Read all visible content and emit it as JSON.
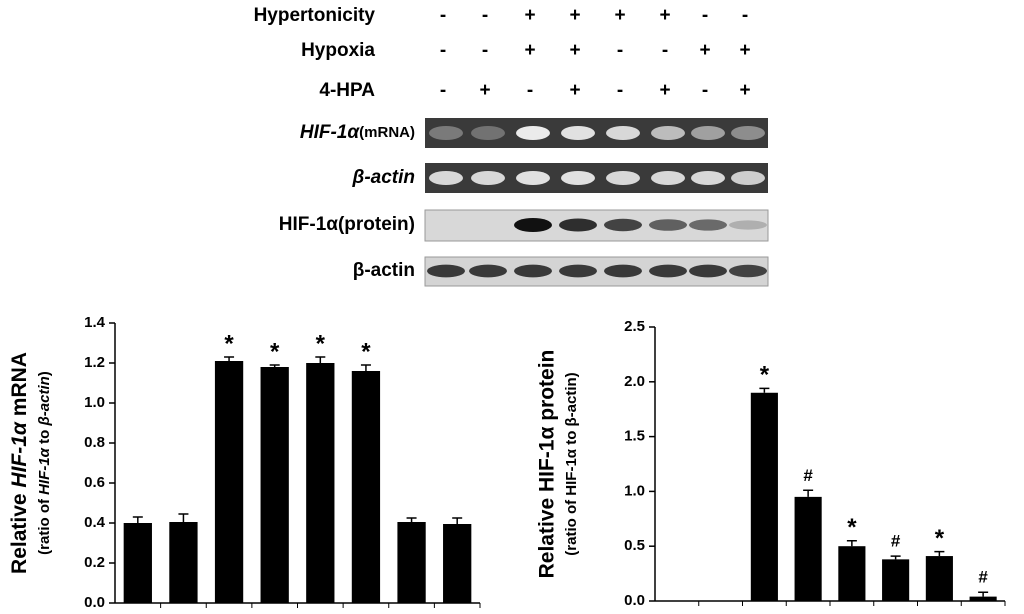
{
  "conditions": [
    {
      "label": "Hypertonicity",
      "signs": [
        "-",
        "-",
        "+",
        "+",
        "+",
        "+",
        "-",
        "-"
      ]
    },
    {
      "label": "Hypoxia",
      "signs": [
        "-",
        "-",
        "+",
        "+",
        "-",
        "-",
        "+",
        "+"
      ]
    },
    {
      "label": "4-HPA",
      "signs": [
        "-",
        "+",
        "-",
        "+",
        "-",
        "+",
        "-",
        "+"
      ]
    }
  ],
  "blots": [
    {
      "label": "HIF-1α",
      "note": "(mRNA)"
    },
    {
      "label": "β-actin"
    },
    {
      "label": "HIF-1α(protein)"
    },
    {
      "label": "β-actin"
    }
  ],
  "chart_data": [
    {
      "type": "bar",
      "ylabel": [
        "Relative ",
        "HIF-1α",
        " mRNA"
      ],
      "ylabel2": [
        "(ratio of ",
        "HIF-1α",
        " to ",
        "β-actin",
        ")"
      ],
      "categories": [
        null,
        null,
        null,
        null,
        null,
        null,
        null,
        null
      ],
      "values": [
        0.4,
        0.405,
        1.21,
        1.18,
        1.2,
        1.16,
        0.405,
        0.395
      ],
      "errors": [
        0.03,
        0.04,
        0.02,
        0.01,
        0.03,
        0.03,
        0.02,
        0.03
      ],
      "annotations": [
        null,
        null,
        "*",
        "*",
        "*",
        "*",
        null,
        null
      ],
      "color": "#000000",
      "ylim": [
        0,
        1.4
      ],
      "yticks": [
        {
          "value": 0,
          "label": "0.0"
        },
        0.2,
        0.4,
        0.6,
        0.8,
        {
          "value": 1,
          "label": "1.0"
        },
        1.2,
        1.4
      ]
    },
    {
      "type": "bar",
      "ylabel": "Relative HIF-1α protein",
      "ylabel2": "(ratio of HIF-1α to β-actin)",
      "categories": [
        null,
        null,
        null,
        null,
        null,
        null,
        null,
        null
      ],
      "values": [
        0,
        0,
        1.9,
        0.95,
        0.5,
        0.38,
        0.41,
        0.04
      ],
      "errors": [
        0,
        0,
        0.04,
        0.06,
        0.05,
        0.03,
        0.04,
        0.04
      ],
      "annotations": [
        null,
        null,
        "*",
        "#",
        "*",
        "#",
        "*",
        "#"
      ],
      "color": "#000000",
      "ylim": [
        0,
        2.5
      ],
      "yticks": [
        {
          "value": 0,
          "label": "0.0"
        },
        0.5,
        {
          "value": 1,
          "label": "1.0"
        },
        1.5,
        {
          "value": 2,
          "label": "2.0"
        },
        2.5
      ]
    }
  ]
}
